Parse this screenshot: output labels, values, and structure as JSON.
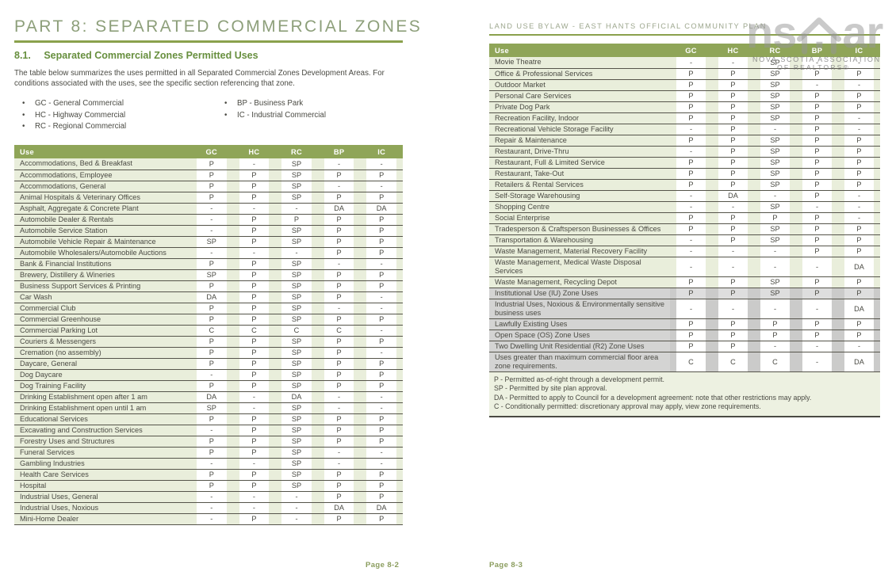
{
  "left_page": {
    "title": "PART 8: SEPARATED COMMERCIAL ZONES",
    "section_number": "8.1.",
    "section_title": "Separated Commercial Zones Permitted Uses",
    "intro": "The table below summarizes the uses permitted in all Separated Commercial Zones Development Areas. For conditions associated with the uses, see the specific section referencing that zone.",
    "bullets_left": [
      "GC - General Commercial",
      "HC - Highway Commercial",
      "RC - Regional Commercial"
    ],
    "bullets_right": [
      "BP - Business Park",
      "IC - Industrial Commercial"
    ],
    "footer": "Page 8-2"
  },
  "right_page": {
    "header": "LAND USE BYLAW - EAST HANTS OFFICIAL COMMUNITY PLAN",
    "footer": "Page 8-3"
  },
  "watermark": {
    "logo_left": "ns",
    "logo_right": "ar",
    "icon": "house-icon",
    "caption_line1": "NOVA SCOTIA ASSOCIATION",
    "caption_line2": "OF REALTORS®"
  },
  "columns": [
    "Use",
    "GC",
    "HC",
    "RC",
    "BP",
    "IC"
  ],
  "left_table_rows": [
    {
      "use": "Accommodations, Bed & Breakfast",
      "values": [
        "P",
        "-",
        "SP",
        "-",
        "-"
      ]
    },
    {
      "use": "Accommodations, Employee",
      "values": [
        "P",
        "P",
        "SP",
        "P",
        "P"
      ]
    },
    {
      "use": "Accommodations, General",
      "values": [
        "P",
        "P",
        "SP",
        "-",
        "-"
      ]
    },
    {
      "use": "Animal Hospitals & Veterinary Offices",
      "values": [
        "P",
        "P",
        "SP",
        "P",
        "P"
      ]
    },
    {
      "use": "Asphalt, Aggregate & Concrete Plant",
      "values": [
        "-",
        "-",
        "-",
        "DA",
        "DA"
      ]
    },
    {
      "use": "Automobile Dealer & Rentals",
      "values": [
        "-",
        "P",
        "P",
        "P",
        "P"
      ]
    },
    {
      "use": "Automobile Service Station",
      "values": [
        "-",
        "P",
        "SP",
        "P",
        "P"
      ]
    },
    {
      "use": "Automobile Vehicle Repair & Maintenance",
      "values": [
        "SP",
        "P",
        "SP",
        "P",
        "P"
      ]
    },
    {
      "use": "Automobile Wholesalers/Automobile Auctions",
      "values": [
        "-",
        "-",
        "-",
        "P",
        "P"
      ]
    },
    {
      "use": "Bank & Financial Institutions",
      "values": [
        "P",
        "P",
        "SP",
        "-",
        "-"
      ]
    },
    {
      "use": "Brewery, Distillery & Wineries",
      "values": [
        "SP",
        "P",
        "SP",
        "P",
        "P"
      ]
    },
    {
      "use": "Business Support Services & Printing",
      "values": [
        "P",
        "P",
        "SP",
        "P",
        "P"
      ]
    },
    {
      "use": "Car Wash",
      "values": [
        "DA",
        "P",
        "SP",
        "P",
        "-"
      ]
    },
    {
      "use": "Commercial Club",
      "values": [
        "P",
        "P",
        "SP",
        "-",
        "-"
      ]
    },
    {
      "use": "Commercial Greenhouse",
      "values": [
        "P",
        "P",
        "SP",
        "P",
        "P"
      ]
    },
    {
      "use": "Commercial Parking Lot",
      "values": [
        "C",
        "C",
        "C",
        "C",
        "-"
      ]
    },
    {
      "use": "Couriers & Messengers",
      "values": [
        "P",
        "P",
        "SP",
        "P",
        "P"
      ]
    },
    {
      "use": "Cremation (no assembly)",
      "values": [
        "P",
        "P",
        "SP",
        "P",
        "-"
      ]
    },
    {
      "use": "Daycare, General",
      "values": [
        "P",
        "P",
        "SP",
        "P",
        "P"
      ]
    },
    {
      "use": "Dog Daycare",
      "values": [
        "-",
        "P",
        "SP",
        "P",
        "P"
      ]
    },
    {
      "use": "Dog Training Facility",
      "values": [
        "P",
        "P",
        "SP",
        "P",
        "P"
      ]
    },
    {
      "use": "Drinking Establishment open after 1 am",
      "values": [
        "DA",
        "-",
        "DA",
        "-",
        "-"
      ]
    },
    {
      "use": "Drinking Establishment open until 1 am",
      "values": [
        "SP",
        "-",
        "SP",
        "-",
        "-"
      ]
    },
    {
      "use": "Educational Services",
      "values": [
        "P",
        "P",
        "SP",
        "P",
        "P"
      ]
    },
    {
      "use": "Excavating and Construction Services",
      "values": [
        "-",
        "P",
        "SP",
        "P",
        "P"
      ]
    },
    {
      "use": "Forestry Uses and Structures",
      "values": [
        "P",
        "P",
        "SP",
        "P",
        "P"
      ]
    },
    {
      "use": "Funeral Services",
      "values": [
        "P",
        "P",
        "SP",
        "-",
        "-"
      ]
    },
    {
      "use": "Gambling Industries",
      "values": [
        "-",
        "-",
        "SP",
        "-",
        "-"
      ]
    },
    {
      "use": "Health Care Services",
      "values": [
        "P",
        "P",
        "SP",
        "P",
        "P"
      ]
    },
    {
      "use": "Hospital",
      "values": [
        "P",
        "P",
        "SP",
        "P",
        "P"
      ]
    },
    {
      "use": "Industrial Uses, General",
      "values": [
        "-",
        "-",
        "-",
        "P",
        "P"
      ]
    },
    {
      "use": "Industrial Uses, Noxious",
      "values": [
        "-",
        "-",
        "-",
        "DA",
        "DA"
      ]
    },
    {
      "use": "Mini-Home Dealer",
      "values": [
        "-",
        "P",
        "-",
        "P",
        "P"
      ]
    }
  ],
  "right_table_rows": [
    {
      "use": "Movie Theatre",
      "values": [
        "-",
        "-",
        "SP",
        "-",
        "-"
      ],
      "theme": "green"
    },
    {
      "use": "Office & Professional Services",
      "values": [
        "P",
        "P",
        "SP",
        "P",
        "P"
      ],
      "theme": "green"
    },
    {
      "use": "Outdoor Market",
      "values": [
        "P",
        "P",
        "SP",
        "-",
        "-"
      ],
      "theme": "green"
    },
    {
      "use": "Personal Care Services",
      "values": [
        "P",
        "P",
        "SP",
        "P",
        "P"
      ],
      "theme": "green"
    },
    {
      "use": "Private Dog Park",
      "values": [
        "P",
        "P",
        "SP",
        "P",
        "P"
      ],
      "theme": "green"
    },
    {
      "use": "Recreation Facility, Indoor",
      "values": [
        "P",
        "P",
        "SP",
        "P",
        "-"
      ],
      "theme": "green"
    },
    {
      "use": "Recreational Vehicle Storage Facility",
      "values": [
        "-",
        "P",
        "-",
        "P",
        "-"
      ],
      "theme": "green"
    },
    {
      "use": "Repair & Maintenance",
      "values": [
        "P",
        "P",
        "SP",
        "P",
        "P"
      ],
      "theme": "green"
    },
    {
      "use": "Restaurant, Drive-Thru",
      "values": [
        "-",
        "P",
        "SP",
        "P",
        "P"
      ],
      "theme": "green"
    },
    {
      "use": "Restaurant, Full & Limited Service",
      "values": [
        "P",
        "P",
        "SP",
        "P",
        "P"
      ],
      "theme": "green"
    },
    {
      "use": "Restaurant, Take-Out",
      "values": [
        "P",
        "P",
        "SP",
        "P",
        "P"
      ],
      "theme": "green"
    },
    {
      "use": "Retailers & Rental Services",
      "values": [
        "P",
        "P",
        "SP",
        "P",
        "P"
      ],
      "theme": "green"
    },
    {
      "use": "Self-Storage Warehousing",
      "values": [
        "-",
        "DA",
        "-",
        "P",
        "-"
      ],
      "theme": "green"
    },
    {
      "use": "Shopping Centre",
      "values": [
        "-",
        "-",
        "SP",
        "-",
        "-"
      ],
      "theme": "green"
    },
    {
      "use": "Social Enterprise",
      "values": [
        "P",
        "P",
        "P",
        "P",
        "-"
      ],
      "theme": "green"
    },
    {
      "use": "Tradesperson & Craftsperson Businesses & Offices",
      "values": [
        "P",
        "P",
        "SP",
        "P",
        "P"
      ],
      "theme": "green"
    },
    {
      "use": "Transportation & Warehousing",
      "values": [
        "-",
        "P",
        "SP",
        "P",
        "P"
      ],
      "theme": "green"
    },
    {
      "use": "Waste Management, Material Recovery Facility",
      "values": [
        "-",
        "-",
        "-",
        "P",
        "P"
      ],
      "theme": "green"
    },
    {
      "use": "Waste Management, Medical Waste Disposal Services",
      "values": [
        "-",
        "-",
        "-",
        "-",
        "DA"
      ],
      "theme": "green"
    },
    {
      "use": "Waste Management, Recycling Depot",
      "values": [
        "P",
        "P",
        "SP",
        "P",
        "P"
      ],
      "theme": "green"
    },
    {
      "use": "Institutional Use (IU) Zone Uses",
      "values": [
        "P",
        "P",
        "SP",
        "P",
        "P"
      ],
      "theme": "gray",
      "shade": true
    },
    {
      "use": "Industrial Uses, Noxious & Environmentally sensitive business uses",
      "values": [
        "-",
        "-",
        "-",
        "-",
        "DA"
      ],
      "theme": "gray"
    },
    {
      "use": "Lawfully Existing Uses",
      "values": [
        "P",
        "P",
        "P",
        "P",
        "P"
      ],
      "theme": "gray"
    },
    {
      "use": "Open Space (OS) Zone Uses",
      "values": [
        "P",
        "P",
        "P",
        "P",
        "P"
      ],
      "theme": "gray"
    },
    {
      "use": "Two Dwelling Unit Residential (R2) Zone Uses",
      "values": [
        "P",
        "P",
        "-",
        "-",
        "-"
      ],
      "theme": "gray"
    },
    {
      "use": "Uses greater than maximum commercial floor area zone requirements.",
      "values": [
        "C",
        "C",
        "C",
        "-",
        "DA"
      ],
      "theme": "gray"
    }
  ],
  "legend_notes": [
    "P - Permitted as-of-right through a development permit.",
    "SP - Permitted by site plan approval.",
    "DA - Permitted to apply to Council for a development agreement: note that other restrictions may apply.",
    "C - Conditionally permitted: discretionary approval may apply, view zone requirements."
  ],
  "colors": {
    "table_header_olive": "#8fa558",
    "rule_olive": "#8aa14c",
    "light_green_cell": "#e9eedb",
    "gray_cell": "#d4d4d3",
    "legend_background": "#edf1e1",
    "heading_green": "#678f3e",
    "part_title_green": "#8d9f7a",
    "body_text": "#4a4a43",
    "footer_green": "#8b9d5e"
  }
}
